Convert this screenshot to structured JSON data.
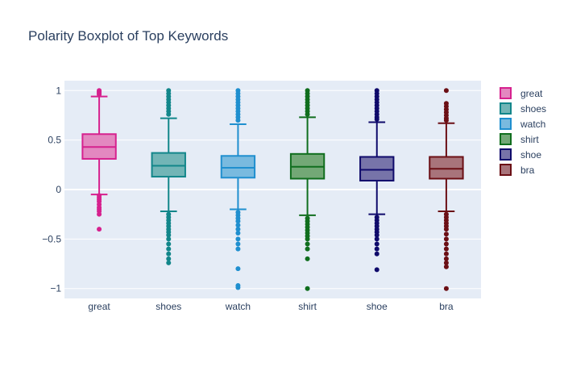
{
  "chart_data": {
    "type": "box",
    "title": "Polarity Boxplot of Top Keywords",
    "xlabel": "",
    "ylabel": "",
    "ylim": [
      -1.1,
      1.1
    ],
    "y_ticks": [
      1,
      0.5,
      0,
      -0.5,
      -1
    ],
    "y_tick_labels": [
      "1",
      "0.5",
      "0",
      "−0.5",
      "−1"
    ],
    "grid": true,
    "legend_position": "right",
    "categories": [
      "great",
      "shoes",
      "watch",
      "shirt",
      "shoe",
      "bra"
    ],
    "series": [
      {
        "name": "great",
        "color": "#d6218e",
        "fill": "#e388c0",
        "stats": {
          "lower_fence": -0.05,
          "q1": 0.31,
          "median": 0.43,
          "q3": 0.56,
          "upper_fence": 0.94
        },
        "outliers": [
          1.0,
          0.99,
          0.98,
          0.97,
          0.96,
          -0.06,
          -0.08,
          -0.1,
          -0.12,
          -0.15,
          -0.18,
          -0.2,
          -0.22,
          -0.25,
          -0.4
        ]
      },
      {
        "name": "shoes",
        "color": "#12868a",
        "fill": "#72b5b6",
        "stats": {
          "lower_fence": -0.22,
          "q1": 0.13,
          "median": 0.24,
          "q3": 0.37,
          "upper_fence": 0.72
        },
        "outliers": [
          1.0,
          0.97,
          0.94,
          0.91,
          0.88,
          0.85,
          0.82,
          0.79,
          0.76,
          -0.25,
          -0.28,
          -0.31,
          -0.34,
          -0.37,
          -0.4,
          -0.43,
          -0.46,
          -0.5,
          -0.55,
          -0.6,
          -0.65,
          -0.7,
          -0.74
        ]
      },
      {
        "name": "watch",
        "color": "#1f8fcf",
        "fill": "#79badf",
        "stats": {
          "lower_fence": -0.2,
          "q1": 0.12,
          "median": 0.22,
          "q3": 0.34,
          "upper_fence": 0.66
        },
        "outliers": [
          1.0,
          0.97,
          0.94,
          0.91,
          0.88,
          0.85,
          0.82,
          0.79,
          0.76,
          0.73,
          0.7,
          -0.23,
          -0.26,
          -0.29,
          -0.32,
          -0.36,
          -0.4,
          -0.44,
          -0.5,
          -0.55,
          -0.6,
          -0.8,
          -0.97,
          -0.99
        ]
      },
      {
        "name": "shirt",
        "color": "#106e1e",
        "fill": "#73a876",
        "stats": {
          "lower_fence": -0.26,
          "q1": 0.11,
          "median": 0.23,
          "q3": 0.36,
          "upper_fence": 0.73
        },
        "outliers": [
          1.0,
          0.97,
          0.94,
          0.91,
          0.88,
          0.85,
          0.82,
          0.79,
          0.76,
          -0.29,
          -0.32,
          -0.35,
          -0.38,
          -0.41,
          -0.44,
          -0.47,
          -0.5,
          -0.55,
          -0.6,
          -0.7,
          -1.0
        ]
      },
      {
        "name": "shoe",
        "color": "#0f0a6b",
        "fill": "#7774a9",
        "stats": {
          "lower_fence": -0.25,
          "q1": 0.09,
          "median": 0.2,
          "q3": 0.33,
          "upper_fence": 0.68
        },
        "outliers": [
          1.0,
          0.97,
          0.94,
          0.91,
          0.88,
          0.85,
          0.82,
          0.79,
          0.76,
          0.73,
          0.71,
          -0.28,
          -0.31,
          -0.34,
          -0.37,
          -0.4,
          -0.43,
          -0.46,
          -0.5,
          -0.55,
          -0.6,
          -0.65,
          -0.81
        ]
      },
      {
        "name": "bra",
        "color": "#6b0f15",
        "fill": "#a8747b",
        "stats": {
          "lower_fence": -0.22,
          "q1": 0.11,
          "median": 0.21,
          "q3": 0.33,
          "upper_fence": 0.67
        },
        "outliers": [
          1.0,
          0.87,
          0.84,
          0.81,
          0.78,
          0.75,
          0.72,
          0.7,
          -0.25,
          -0.28,
          -0.31,
          -0.34,
          -0.37,
          -0.4,
          -0.45,
          -0.5,
          -0.55,
          -0.6,
          -0.65,
          -0.7,
          -0.74,
          -0.78,
          -1.0
        ]
      }
    ]
  }
}
